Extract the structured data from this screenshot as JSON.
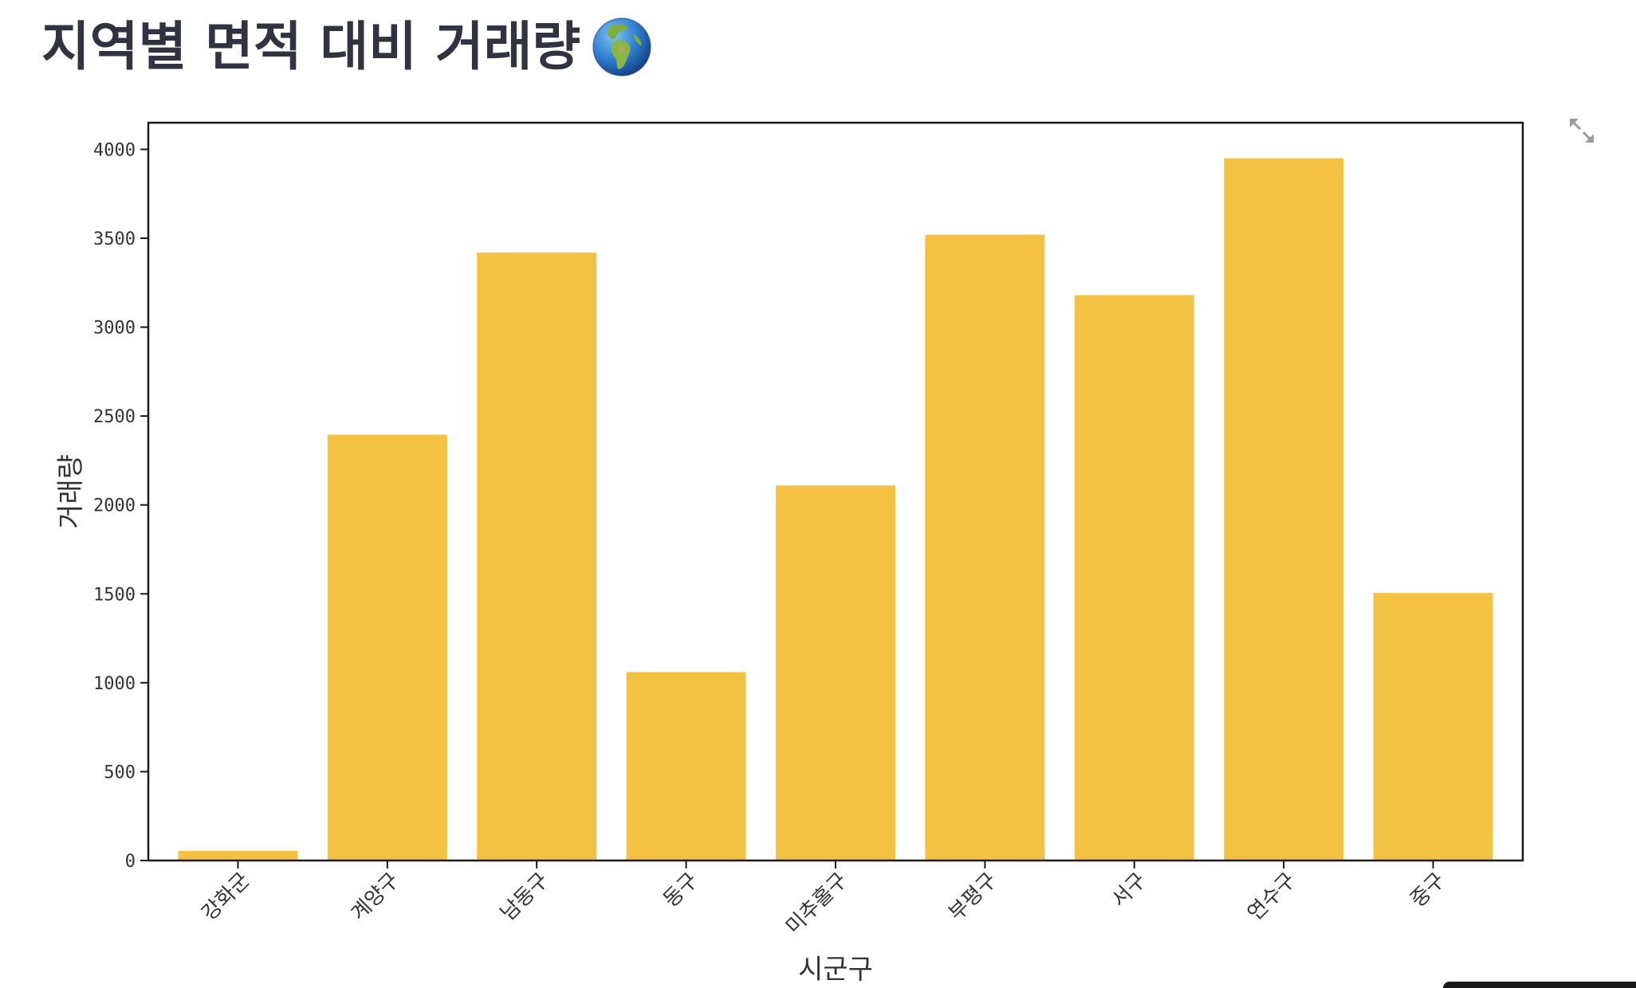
{
  "page": {
    "title": "지역별 면적 대비 거래량",
    "title_icon": "globe-europe-africa-icon",
    "fullscreen_icon": "expand-arrows-icon"
  },
  "colors": {
    "bar": "#f4c242",
    "title": "#31333f",
    "axis": "#1a1a1a"
  },
  "chart_data": {
    "type": "bar",
    "title": "",
    "xlabel": "시군구",
    "ylabel": "거래량",
    "categories": [
      "강화군",
      "계양구",
      "남동구",
      "동구",
      "미추홀구",
      "부평구",
      "서구",
      "연수구",
      "중구"
    ],
    "values": [
      55,
      2395,
      3420,
      1060,
      2110,
      3520,
      3180,
      3950,
      1505
    ],
    "ylim": [
      0,
      4150
    ],
    "yticks": [
      0,
      500,
      1000,
      1500,
      2000,
      2500,
      3000,
      3500,
      4000
    ],
    "ytick_labels": [
      "0",
      "500",
      "1000",
      "1500",
      "2000",
      "2500",
      "3000",
      "3500",
      "4000"
    ],
    "grid": false,
    "legend": "none"
  }
}
